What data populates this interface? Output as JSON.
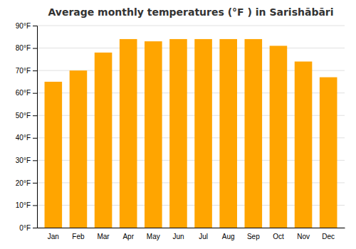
{
  "chart_data": {
    "type": "bar",
    "title": "Average monthly temperatures (°F ) in Sarishābāri",
    "categories": [
      "Jan",
      "Feb",
      "Mar",
      "Apr",
      "May",
      "Jun",
      "Jul",
      "Aug",
      "Sep",
      "Oct",
      "Nov",
      "Dec"
    ],
    "values": [
      65,
      70,
      78,
      84,
      83,
      84,
      84,
      84,
      84,
      81,
      74,
      67
    ],
    "color": "#FFA500",
    "ylim": [
      0,
      90
    ],
    "yticks": [
      {
        "value": 0,
        "label": "0°F"
      },
      {
        "value": 10,
        "label": "10°F"
      },
      {
        "value": 20,
        "label": "20°F"
      },
      {
        "value": 30,
        "label": "30°F"
      },
      {
        "value": 40,
        "label": "40°F"
      },
      {
        "value": 50,
        "label": "50°F"
      },
      {
        "value": 60,
        "label": "60°F"
      },
      {
        "value": 70,
        "label": "70°F"
      },
      {
        "value": 80,
        "label": "80°F"
      },
      {
        "value": 90,
        "label": "90°F"
      }
    ],
    "grid": true
  }
}
